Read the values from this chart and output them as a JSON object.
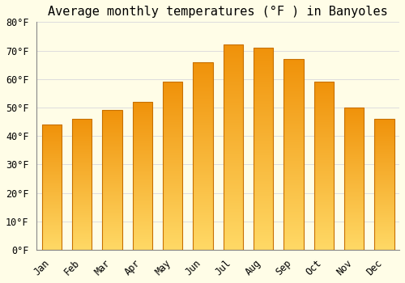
{
  "title": "Average monthly temperatures (°F ) in Banyoles",
  "categories": [
    "Jan",
    "Feb",
    "Mar",
    "Apr",
    "May",
    "Jun",
    "Jul",
    "Aug",
    "Sep",
    "Oct",
    "Nov",
    "Dec"
  ],
  "values": [
    44,
    46,
    49,
    52,
    59,
    66,
    72,
    71,
    67,
    59,
    50,
    46
  ],
  "bar_color_top": "#F0920A",
  "bar_color_bottom": "#FFD966",
  "bar_edge_color": "#C87000",
  "background_color": "#FFFDE7",
  "grid_color": "#DDDDDD",
  "ylim": [
    0,
    80
  ],
  "yticks": [
    0,
    10,
    20,
    30,
    40,
    50,
    60,
    70,
    80
  ],
  "ytick_labels": [
    "0°F",
    "10°F",
    "20°F",
    "30°F",
    "40°F",
    "50°F",
    "60°F",
    "70°F",
    "80°F"
  ],
  "title_fontsize": 11,
  "tick_fontsize": 8.5,
  "font_family": "monospace"
}
